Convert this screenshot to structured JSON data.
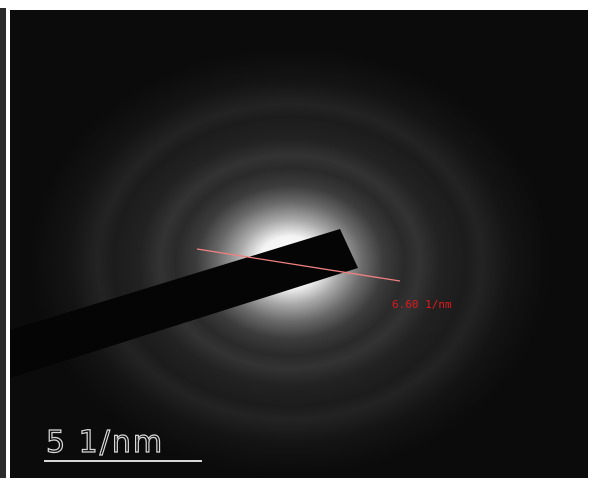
{
  "measurement": {
    "label": "6.60 1/nm"
  },
  "scale_bar": {
    "label": "5 1/nm"
  }
}
